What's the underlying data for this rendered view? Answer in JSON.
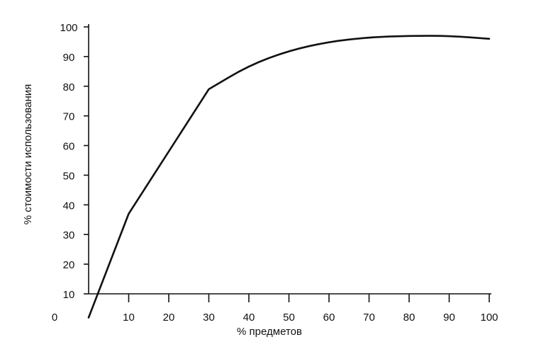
{
  "chart_data": {
    "type": "line",
    "xlabel": "% предметов",
    "ylabel": "% стоимости использования",
    "origin_label": "0",
    "x_ticks": [
      10,
      20,
      30,
      40,
      50,
      60,
      70,
      80,
      90,
      100
    ],
    "y_ticks": [
      10,
      20,
      30,
      40,
      50,
      60,
      70,
      80,
      90,
      100
    ],
    "xlim": [
      0,
      100
    ],
    "ylim": [
      0,
      100
    ],
    "grid": false,
    "legend": "none",
    "series": [
      {
        "color": "#111111",
        "x": [
          0,
          10,
          30,
          40,
          50,
          60,
          70,
          80,
          90,
          100
        ],
        "y": [
          2,
          37,
          79,
          87,
          92,
          95,
          96.5,
          97,
          97,
          96
        ]
      }
    ]
  }
}
